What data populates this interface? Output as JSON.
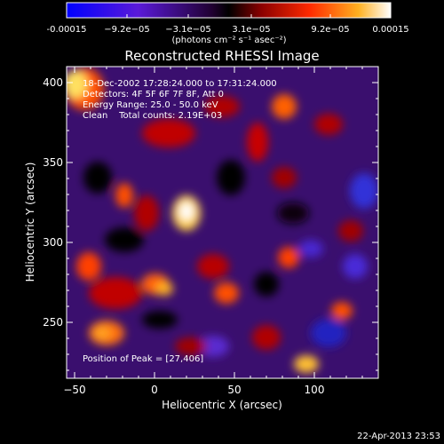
{
  "colorbar": {
    "tick_labels": [
      "-0.00015",
      "−9.2e−05",
      "−3.1e−05",
      "3.1e−05",
      "9.2e−05",
      "0.00015"
    ],
    "units": "(photons cm⁻² s⁻¹ asec⁻²)"
  },
  "chart_data": {
    "type": "heatmap",
    "title": "Reconstructed RHESSI Image",
    "xlabel": "Heliocentric X (arcsec)",
    "ylabel": "Heliocentric Y (arcsec)",
    "xlim": [
      -55,
      140
    ],
    "ylim": [
      215,
      410
    ],
    "x_ticks": [
      -50,
      0,
      50,
      100
    ],
    "y_ticks": [
      250,
      300,
      350,
      400
    ],
    "annotations": [
      "18-Dec-2002 17:28:24.000 to 17:31:24.000",
      "Detectors: 4F 5F 6F 7F 8F, Att 0",
      "Energy Range: 25.0 - 50.0 keV",
      "Clean    Total counts: 2.19E+03"
    ],
    "peak_label": "Position of Peak = [27,406]",
    "colormap": [
      "#0000ff",
      "#6a1fd0",
      "#000000",
      "#9a0000",
      "#ff3000",
      "#ffc020",
      "#ffffff"
    ],
    "clim": [
      -0.00015,
      0.00015
    ]
  },
  "footer": {
    "timestamp": "22-Apr-2013 23:53"
  }
}
